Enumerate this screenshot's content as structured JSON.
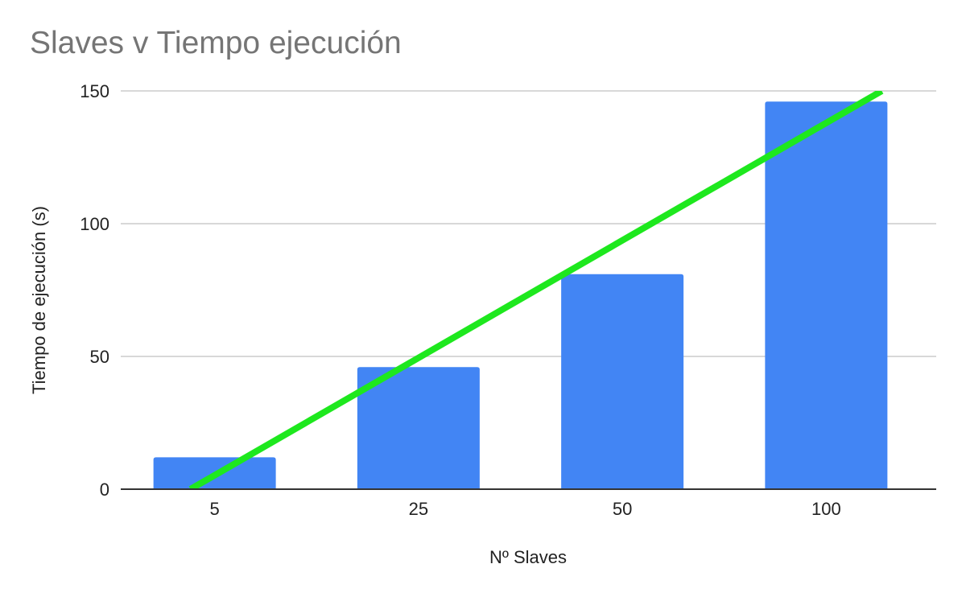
{
  "chart_data": {
    "type": "bar",
    "title": "Slaves v Tiempo ejecución",
    "xlabel": "Nº Slaves",
    "ylabel": "Tiempo de ejecución (s)",
    "categories": [
      "5",
      "25",
      "50",
      "100"
    ],
    "values": [
      12,
      46,
      81,
      146
    ],
    "ylim": [
      0,
      150
    ],
    "yticks": [
      0,
      50,
      100,
      150
    ],
    "grid": true,
    "trendline": {
      "type": "linear",
      "start": {
        "category_index": 0,
        "y": 0
      },
      "end": {
        "category_index": 3,
        "y": 150
      }
    },
    "colors": {
      "bar": "#4285f4",
      "trendline": "#1ee81e",
      "grid": "#cccccc",
      "axis": "#333333",
      "title": "#757575"
    }
  }
}
